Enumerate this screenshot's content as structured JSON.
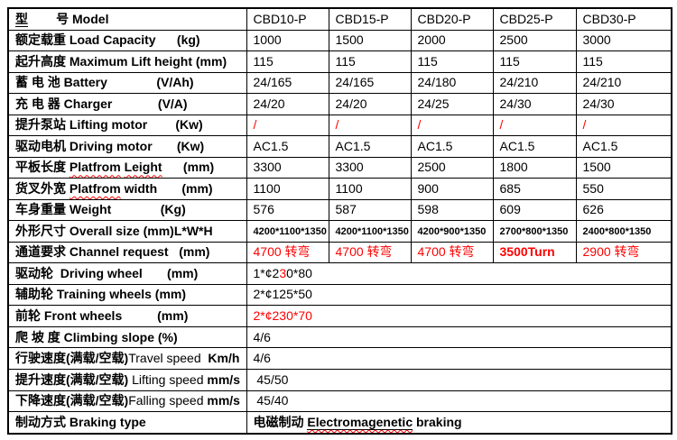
{
  "colors": {
    "text": "#000000",
    "accent_red": "#ff0000",
    "border": "#000000",
    "background": "#ffffff"
  },
  "table": {
    "header": {
      "label_parts": [
        {
          "t": "型",
          "b": true,
          "u": true
        },
        {
          "t": "        号 ",
          "b": true
        },
        {
          "t": "Model",
          "b": true
        }
      ],
      "models": [
        "CBD10-P",
        "CBD15-P",
        "CBD20-P",
        "CBD25-P",
        "CBD30-P"
      ]
    },
    "rows": [
      {
        "name": "load-capacity",
        "label": [
          {
            "t": "额定载重 Load Capacity      (kg)",
            "b": true
          }
        ],
        "values": [
          "1000",
          "1500",
          "2000",
          "2500",
          "3000"
        ]
      },
      {
        "name": "max-lift-height",
        "label": [
          {
            "t": "起升高度 Maximum Lift height (mm)",
            "b": true
          }
        ],
        "values": [
          "115",
          "115",
          "115",
          "115",
          "115"
        ]
      },
      {
        "name": "battery",
        "label": [
          {
            "t": "蓄 电 池 Battery              (V/Ah)",
            "b": true
          }
        ],
        "values": [
          "24/165",
          "24/165",
          "24/180",
          "24/210",
          "24/210"
        ]
      },
      {
        "name": "charger",
        "label": [
          {
            "t": "充 电 器 Charger             (V/A)",
            "b": true
          }
        ],
        "values": [
          "24/20",
          "24/20",
          "24/25",
          "24/30",
          "24/30"
        ]
      },
      {
        "name": "lifting-motor",
        "label": [
          {
            "t": "提升泵站 Lifting motor        (Kw)",
            "b": true
          }
        ],
        "values": [
          {
            "t": "/",
            "red": true
          },
          {
            "t": "/",
            "red": true
          },
          {
            "t": "/",
            "red": true
          },
          {
            "t": "/",
            "red": true
          },
          {
            "t": "/",
            "red": true
          }
        ]
      },
      {
        "name": "driving-motor",
        "label": [
          {
            "t": "驱动电机 Driving motor       (Kw)",
            "b": true
          }
        ],
        "values": [
          "AC1.5",
          "AC1.5",
          "AC1.5",
          "AC1.5",
          "AC1.5"
        ]
      },
      {
        "name": "platform-length",
        "label": [
          {
            "t": "平板长度 ",
            "b": true
          },
          {
            "t": "Platfrom",
            "b": true,
            "sq": true
          },
          {
            "t": " ",
            "b": true
          },
          {
            "t": "Leight",
            "b": true,
            "sq": true
          },
          {
            "t": "      (mm)",
            "b": true
          }
        ],
        "values": [
          "3300",
          "3300",
          "2500",
          "1800",
          "1500"
        ]
      },
      {
        "name": "platform-width",
        "label": [
          {
            "t": "货叉外宽 ",
            "b": true
          },
          {
            "t": "Platfrom",
            "b": true,
            "sq": true
          },
          {
            "t": " width       (mm)",
            "b": true
          }
        ],
        "values": [
          "1100",
          "1100",
          "900",
          "685",
          "550"
        ]
      },
      {
        "name": "weight",
        "label": [
          {
            "t": "车身重量 Weight              (Kg)",
            "b": true
          }
        ],
        "values": [
          "576",
          "587",
          "598",
          "609",
          "626"
        ]
      },
      {
        "name": "overall-size",
        "label": [
          {
            "t": "外形尺寸 Overall size (mm)L*W*H",
            "b": true
          }
        ],
        "small": true,
        "values": [
          "4200*1100*1350",
          "4200*1100*1350",
          "4200*900*1350",
          "2700*800*1350",
          "2400*800*1350"
        ]
      },
      {
        "name": "channel-request",
        "label": [
          {
            "t": "通道要求 Channel request   (mm)",
            "b": true
          }
        ],
        "values": [
          {
            "t": "4700 转弯",
            "red": true
          },
          {
            "t": "4700 转弯",
            "red": true
          },
          {
            "t": "4700 转弯",
            "red": true
          },
          {
            "t": "3500Turn",
            "red": true,
            "b": true
          },
          {
            "t": "2900 转弯",
            "red": true
          }
        ]
      },
      {
        "name": "driving-wheel",
        "label": [
          {
            "t": "驱动轮  Driving wheel       (mm)",
            "b": true
          }
        ],
        "span": true,
        "value": [
          {
            "t": "1*¢2"
          },
          {
            "t": "3",
            "red": true
          },
          {
            "t": "0*80"
          }
        ]
      },
      {
        "name": "training-wheels",
        "label": [
          {
            "t": "辅助轮 Training wheels (mm)",
            "b": true
          }
        ],
        "span": true,
        "value": [
          {
            "t": "2*¢125*50"
          }
        ]
      },
      {
        "name": "front-wheels",
        "label": [
          {
            "t": "前轮 Front wheels          (mm)",
            "b": true
          }
        ],
        "span": true,
        "value": [
          {
            "t": "2*¢230*70",
            "red": true
          }
        ]
      },
      {
        "name": "climbing-slope",
        "label": [
          {
            "t": "爬 坡 度 Climbing slope (%)",
            "b": true
          }
        ],
        "span": true,
        "value": [
          {
            "t": "4/6"
          }
        ]
      },
      {
        "name": "travel-speed",
        "label": [
          {
            "t": "行驶速度(满载/空载)",
            "b": true
          },
          {
            "t": "Travel speed"
          },
          {
            "t": "  Km/h",
            "b": true
          }
        ],
        "span": true,
        "value": [
          {
            "t": "4/6"
          }
        ]
      },
      {
        "name": "lifting-speed",
        "label": [
          {
            "t": "提升速度(满载/空载) ",
            "b": true
          },
          {
            "t": "Lifting speed "
          },
          {
            "t": "mm/s",
            "b": true
          }
        ],
        "span": true,
        "value": [
          {
            "t": " 45/50"
          }
        ]
      },
      {
        "name": "falling-speed",
        "label": [
          {
            "t": "下降速度(满载/空载)",
            "b": true
          },
          {
            "t": "Falling speed "
          },
          {
            "t": "mm/s",
            "b": true
          }
        ],
        "span": true,
        "value": [
          {
            "t": " 45/40"
          }
        ]
      },
      {
        "name": "braking-type",
        "label": [
          {
            "t": "制动方式 Braking type",
            "b": true
          }
        ],
        "span": true,
        "value": [
          {
            "t": "电磁制动 ",
            "b": true
          },
          {
            "t": "Electromagenetic",
            "b": true,
            "u": true,
            "sq": true
          },
          {
            "t": " braking",
            "b": true
          }
        ]
      }
    ]
  }
}
